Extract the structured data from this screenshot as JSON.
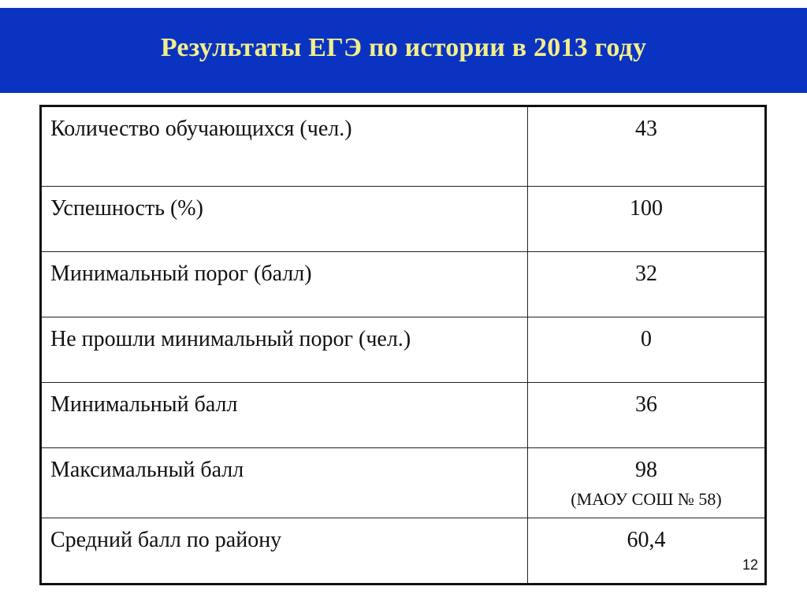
{
  "header": {
    "title": "Результаты ЕГЭ по истории в 2013 году"
  },
  "table": {
    "rows": [
      {
        "label": "Количество обучающихся (чел.)",
        "value": "43"
      },
      {
        "label": "Успешность (%)",
        "value": "100"
      },
      {
        "label": "Минимальный порог (балл)",
        "value": "32"
      },
      {
        "label": "Не прошли минимальный порог (чел.)",
        "value": "0"
      },
      {
        "label": "Минимальный балл",
        "value": "36"
      },
      {
        "label": "Максимальный балл",
        "value": "98",
        "note": "(МАОУ СОШ № 58)"
      },
      {
        "label": "Средний балл по району",
        "value": "60,4"
      }
    ]
  },
  "footer": {
    "page_number": "12"
  },
  "colors": {
    "header_band": "#0b33c2",
    "header_text": "#f2ee8a"
  }
}
